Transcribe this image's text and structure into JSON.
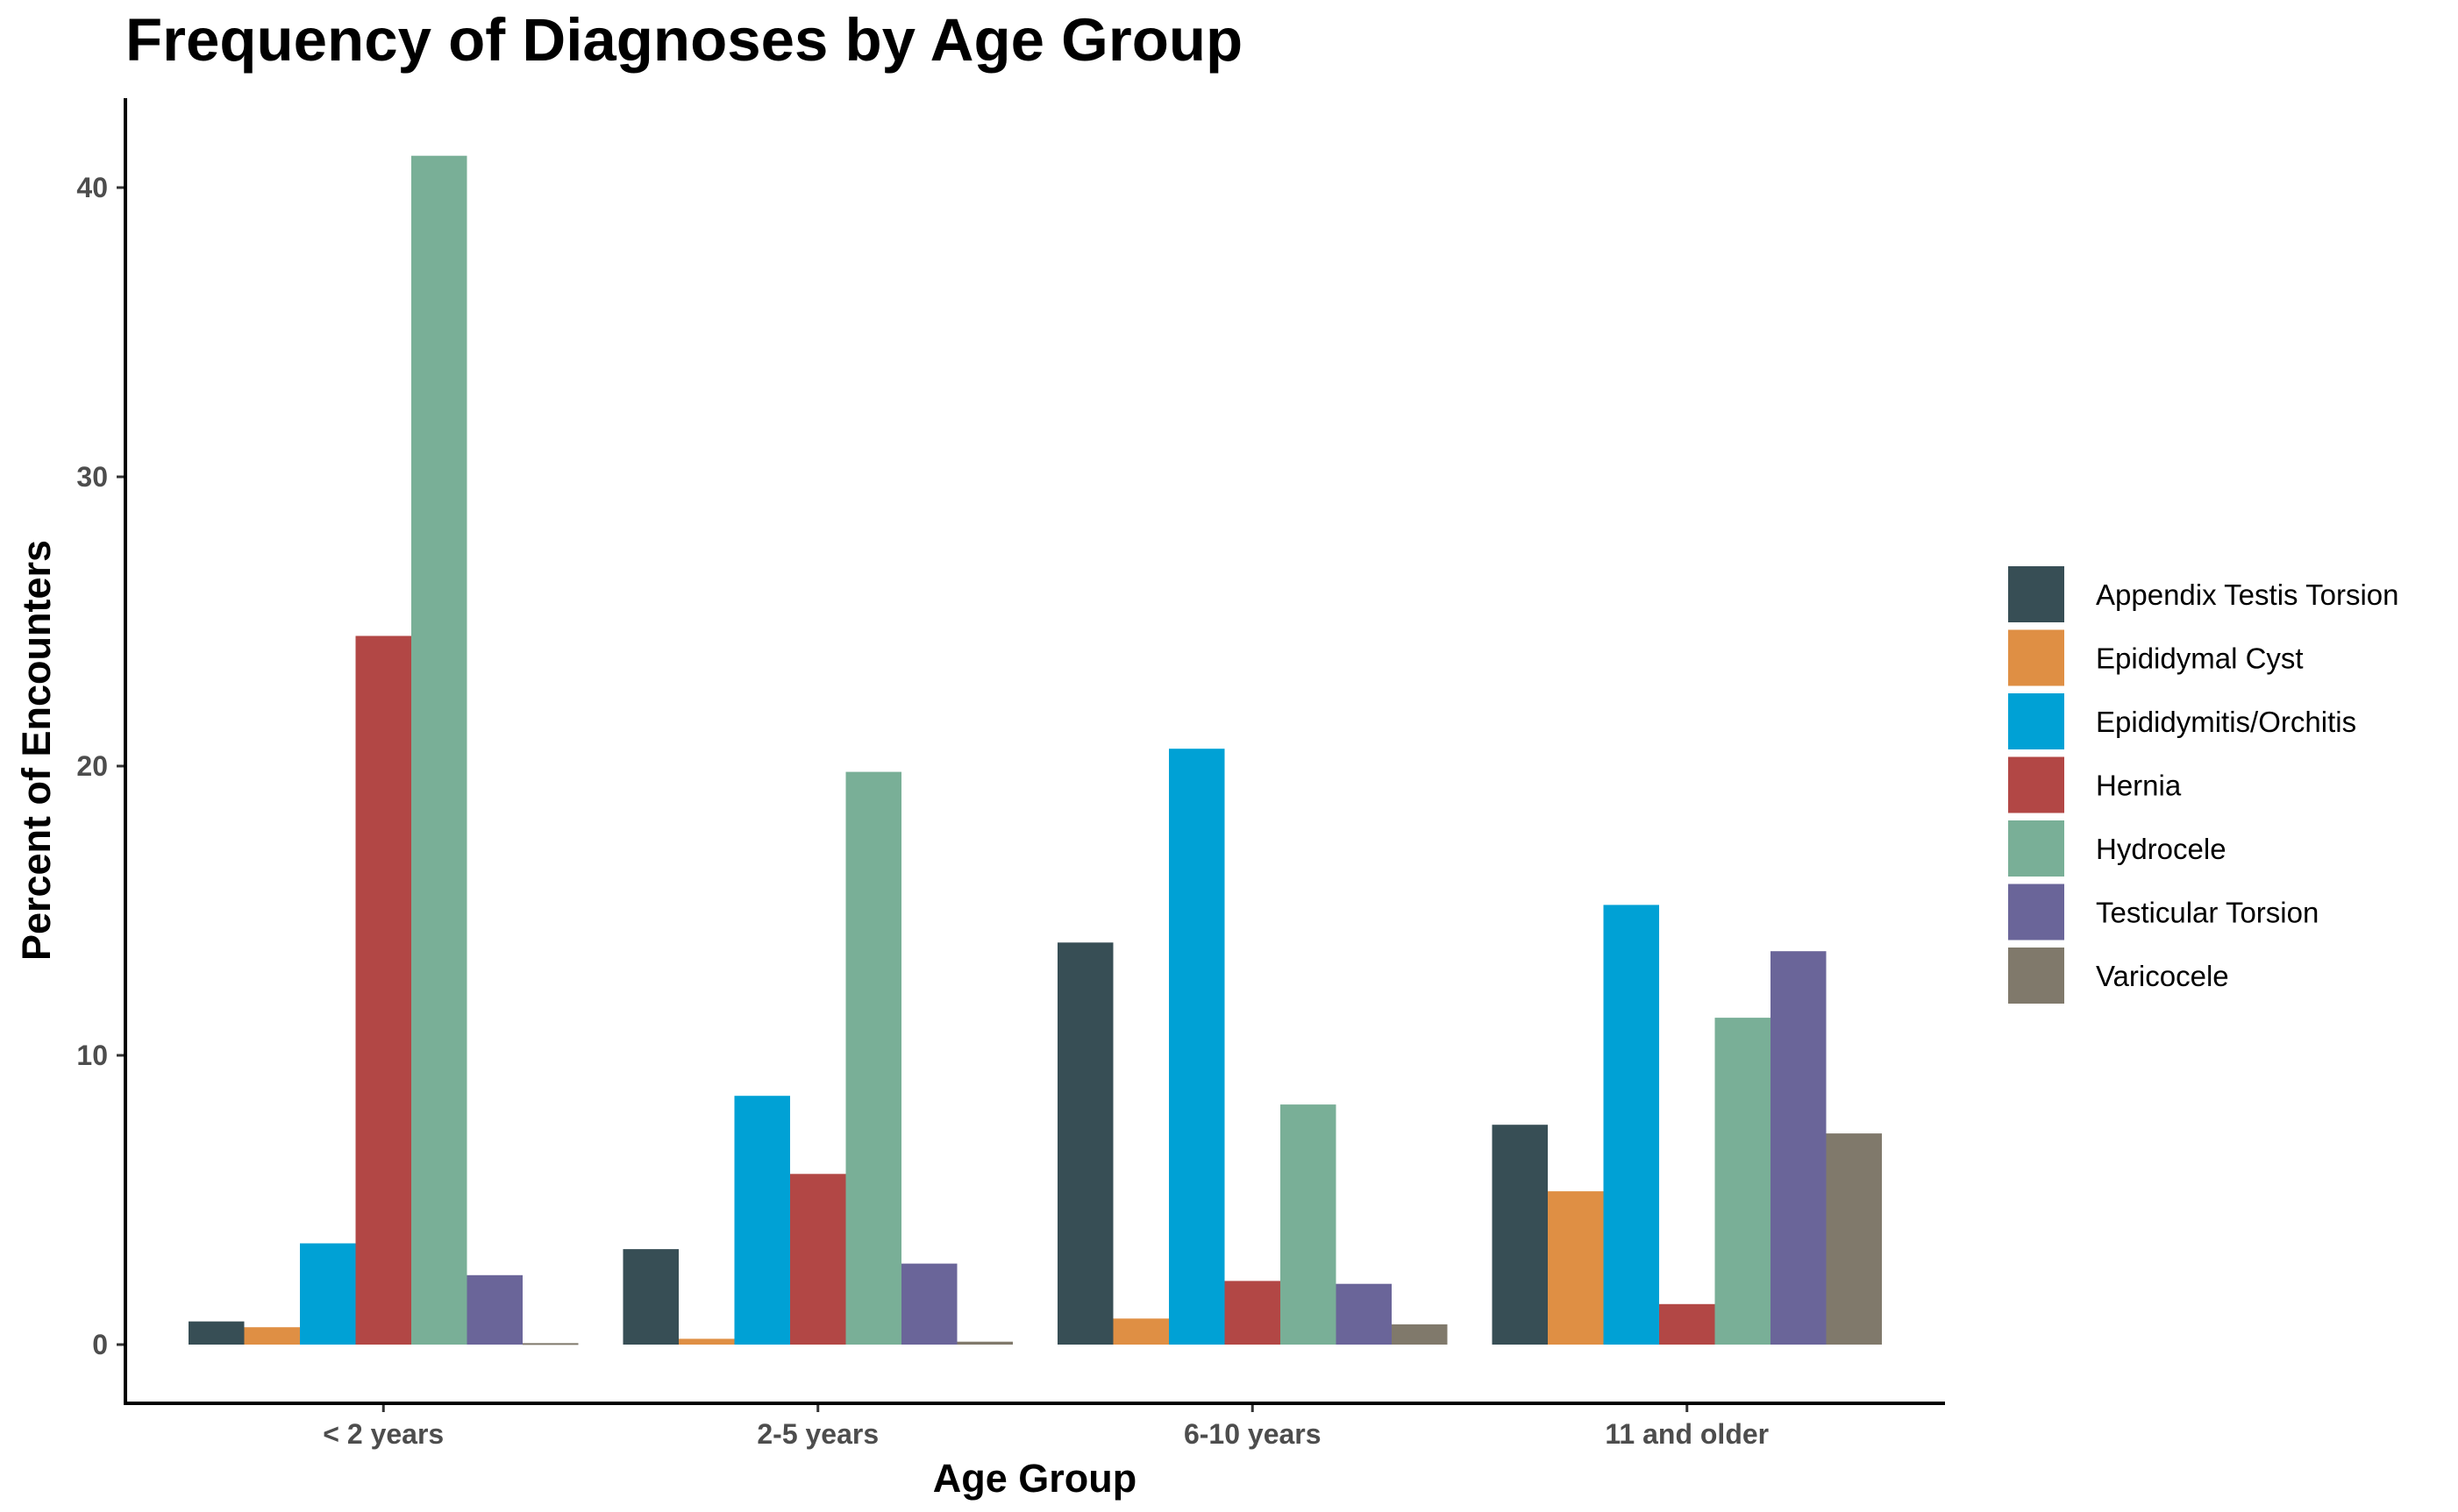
{
  "chart_data": {
    "type": "bar",
    "title": "Frequency of Diagnoses by Age Group",
    "xlabel": "Age Group",
    "ylabel": "Percent of Encounters",
    "categories": [
      "< 2 years",
      "2-5 years",
      "6-10 years",
      "11 and older"
    ],
    "ylim": [
      -2,
      43
    ],
    "yticks": [
      0,
      10,
      20,
      30,
      40
    ],
    "yticklabels": [
      "0",
      "10",
      "20",
      "30",
      "40"
    ],
    "grid": false,
    "legend_position": "right",
    "series": [
      {
        "name": "Appendix Testis Torsion",
        "color": "#374e55",
        "values": [
          0.8,
          3.3,
          13.9,
          7.6
        ]
      },
      {
        "name": "Epididymal Cyst",
        "color": "#df8f44",
        "values": [
          0.6,
          0.2,
          0.9,
          5.3
        ]
      },
      {
        "name": "Epididymitis/Orchitis",
        "color": "#00a1d5",
        "values": [
          3.5,
          8.6,
          20.6,
          15.2
        ]
      },
      {
        "name": "Hernia",
        "color": "#b24745",
        "values": [
          24.5,
          5.9,
          2.2,
          1.4
        ]
      },
      {
        "name": "Hydrocele",
        "color": "#79af97",
        "values": [
          41.1,
          19.8,
          8.3,
          11.3
        ]
      },
      {
        "name": "Testicular Torsion",
        "color": "#6a6599",
        "values": [
          2.4,
          2.8,
          2.1,
          13.6
        ]
      },
      {
        "name": "Varicocele",
        "color": "#80796b",
        "values": [
          0.05,
          0.1,
          0.7,
          7.3
        ]
      }
    ]
  }
}
